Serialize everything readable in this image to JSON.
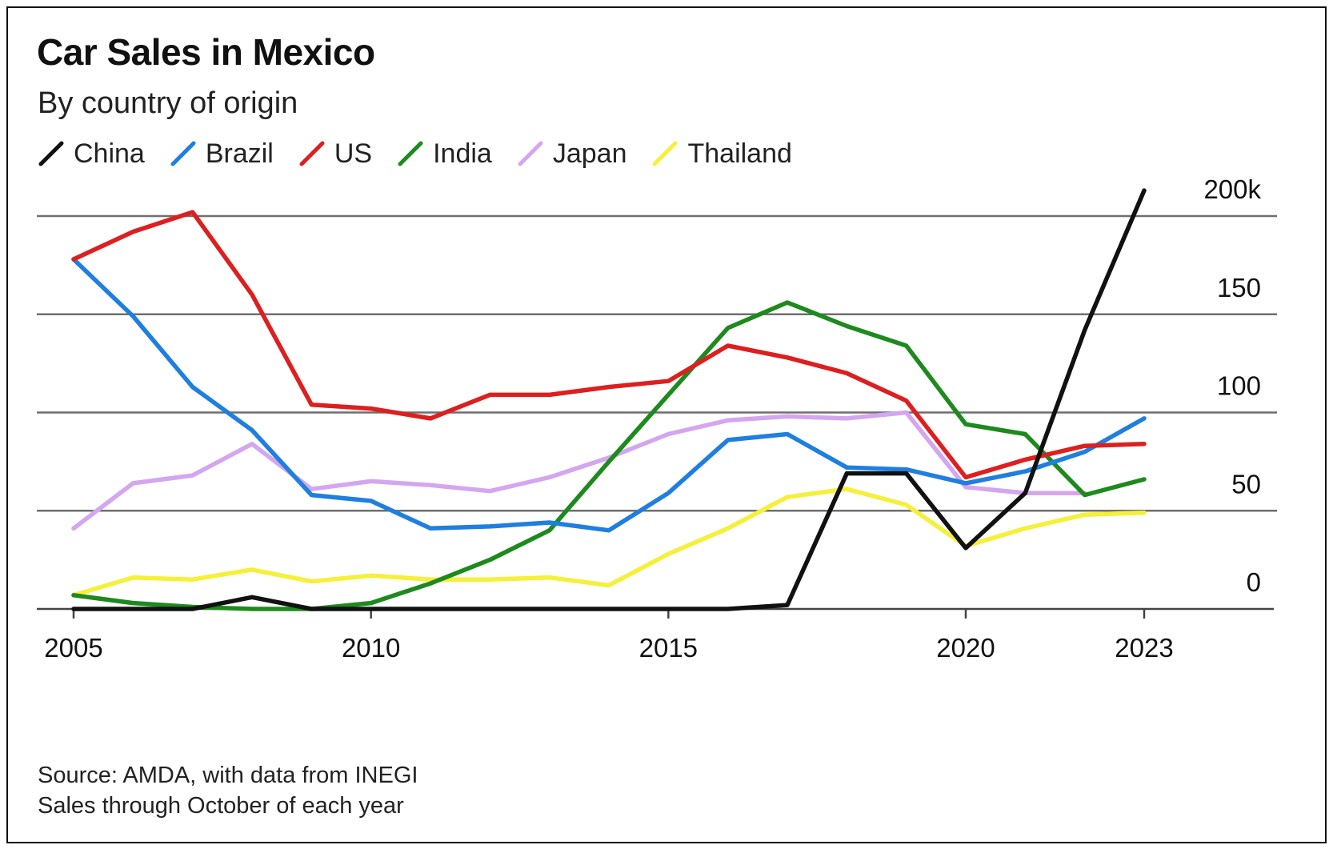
{
  "title": "Car Sales in Mexico",
  "subtitle": "By country of origin",
  "source": "Source: AMDA, with data from INEGI",
  "note": "Sales through October of each year",
  "chart_data": {
    "type": "line",
    "title": "Car Sales in Mexico",
    "subtitle": "By country of origin",
    "xlabel": "",
    "ylabel": "",
    "x": [
      2005,
      2006,
      2007,
      2008,
      2009,
      2010,
      2011,
      2012,
      2013,
      2014,
      2015,
      2016,
      2017,
      2018,
      2019,
      2020,
      2021,
      2022,
      2023
    ],
    "xticks": [
      2005,
      2010,
      2015,
      2020,
      2023
    ],
    "xtick_labels": [
      "2005",
      "2010",
      "2015",
      "2020",
      "2023"
    ],
    "ylim": [
      0,
      200
    ],
    "yticks": [
      0,
      50,
      100,
      150,
      200
    ],
    "ytick_labels": [
      "0",
      "50",
      "100",
      "150",
      "200k"
    ],
    "grid": "horizontal",
    "legend_position": "top-left",
    "series": [
      {
        "name": "China",
        "color": "#111111",
        "values": [
          0,
          0,
          0,
          6,
          0,
          0,
          0,
          0,
          0,
          0,
          0,
          0,
          2,
          69,
          69,
          31,
          59,
          142,
          213
        ]
      },
      {
        "name": "Brazil",
        "color": "#1f7fe0",
        "values": [
          178,
          149,
          113,
          91,
          58,
          55,
          41,
          42,
          44,
          40,
          59,
          86,
          89,
          72,
          71,
          64,
          70,
          80,
          97
        ]
      },
      {
        "name": "US",
        "color": "#dd1f1f",
        "values": [
          178,
          192,
          202,
          160,
          104,
          102,
          97,
          109,
          109,
          113,
          116,
          134,
          128,
          120,
          106,
          67,
          76,
          83,
          84
        ]
      },
      {
        "name": "India",
        "color": "#1e8a1e",
        "values": [
          7,
          3,
          1,
          0,
          0,
          3,
          13,
          25,
          40,
          75,
          109,
          143,
          156,
          144,
          134,
          94,
          89,
          58,
          66
        ]
      },
      {
        "name": "Japan",
        "color": "#d5a6f0",
        "values": [
          41,
          64,
          68,
          84,
          61,
          65,
          63,
          60,
          67,
          77,
          89,
          96,
          98,
          97,
          100,
          62,
          59,
          59,
          null
        ]
      },
      {
        "name": "Thailand",
        "color": "#f5f03a",
        "values": [
          7,
          16,
          15,
          20,
          14,
          17,
          15,
          15,
          16,
          12,
          28,
          41,
          57,
          61,
          53,
          32,
          41,
          48,
          49
        ]
      }
    ]
  }
}
